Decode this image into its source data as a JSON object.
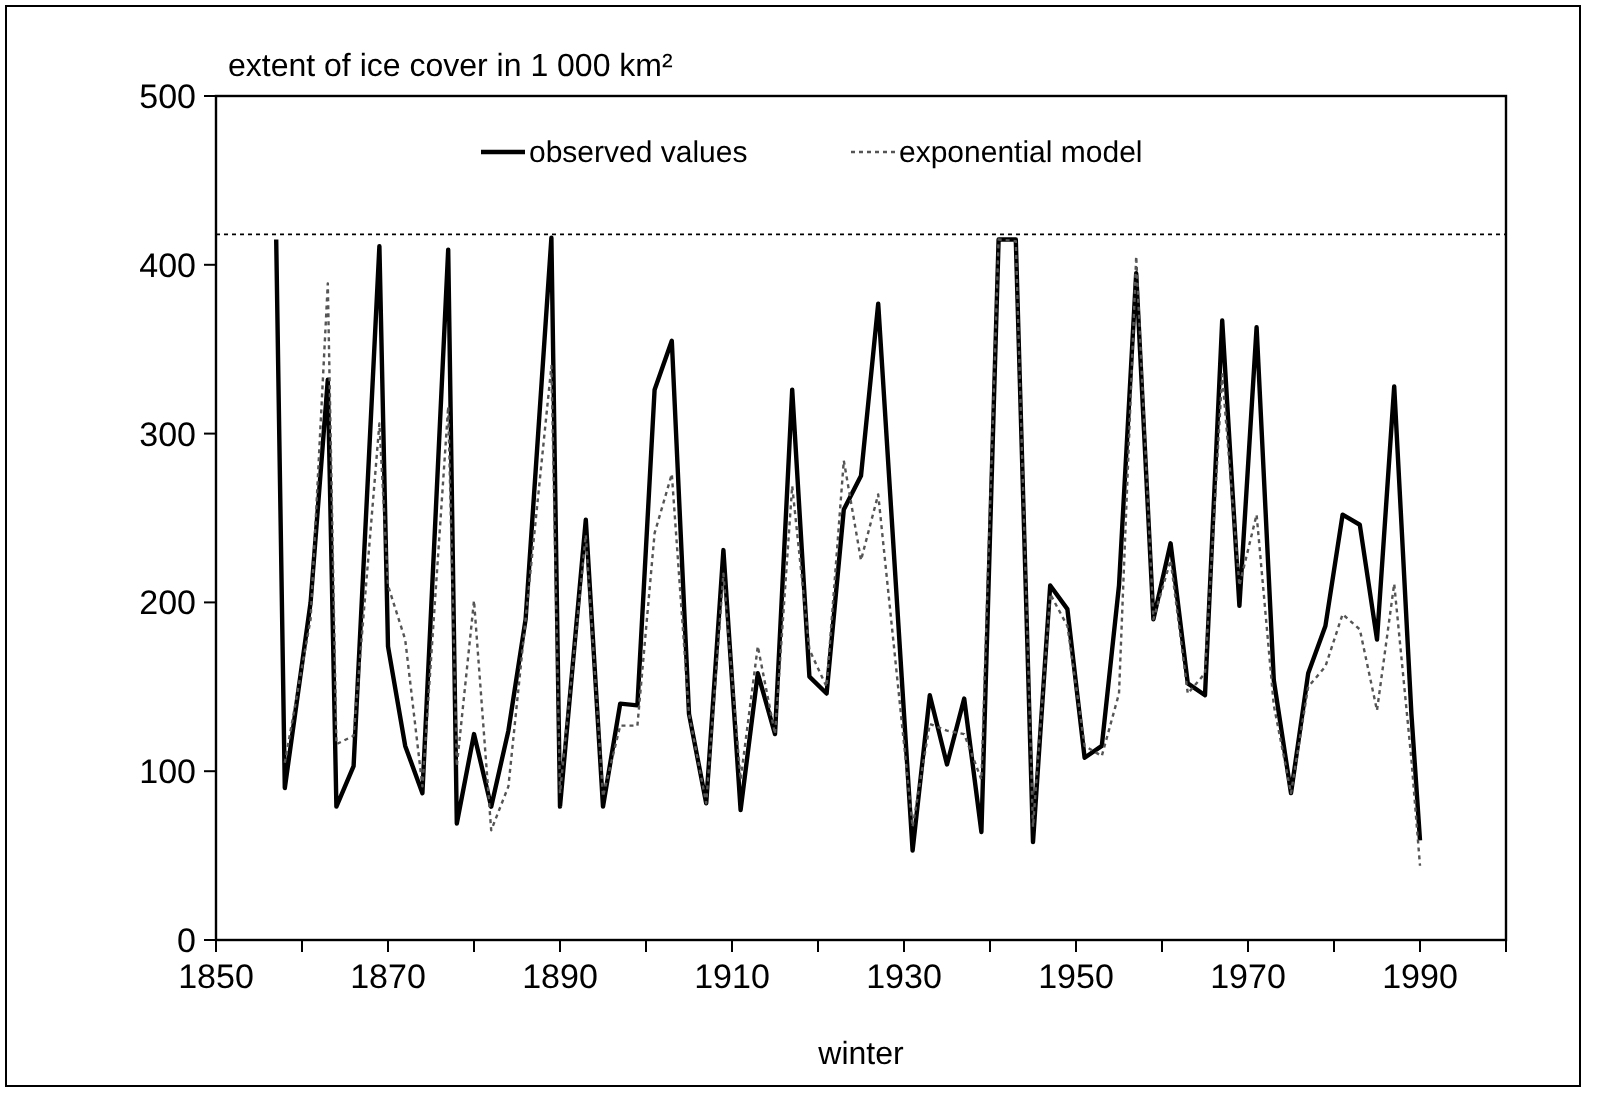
{
  "chart_data": {
    "type": "line",
    "ylabel": "extent of ice cover in 1 000 km²",
    "xlabel": "winter",
    "x": [
      1857,
      1858,
      1861,
      1863,
      1864,
      1866,
      1869,
      1870,
      1872,
      1874,
      1877,
      1878,
      1880,
      1882,
      1884,
      1886,
      1889,
      1890,
      1893,
      1895,
      1897,
      1899,
      1901,
      1903,
      1905,
      1907,
      1909,
      1911,
      1913,
      1915,
      1917,
      1919,
      1921,
      1923,
      1925,
      1927,
      1931,
      1933,
      1935,
      1937,
      1939,
      1941,
      1943,
      1945,
      1947,
      1949,
      1951,
      1953,
      1955,
      1957,
      1959,
      1961,
      1963,
      1965,
      1967,
      1969,
      1971,
      1973,
      1975,
      1977,
      1979,
      1981,
      1983,
      1985,
      1987,
      1989,
      1990
    ],
    "series": [
      {
        "name": "observed values",
        "color": "#000000",
        "line_style": "solid",
        "values": [
          415,
          90,
          200,
          332,
          79,
          103,
          411,
          174,
          115,
          87,
          409,
          69,
          122,
          79,
          124,
          190,
          416,
          79,
          249,
          79,
          140,
          139,
          326,
          355,
          134,
          81,
          231,
          77,
          158,
          122,
          326,
          156,
          146,
          255,
          275,
          377,
          53,
          145,
          104,
          143,
          64,
          415,
          415,
          58,
          210,
          196,
          108,
          115,
          210,
          395,
          190,
          235,
          152,
          145,
          367,
          198,
          363,
          154,
          87,
          158,
          186,
          252,
          246,
          178,
          328,
          134,
          59
        ]
      },
      {
        "name": "exponential model",
        "color": "#555555",
        "line_style": "dotted",
        "values": [
          null,
          105,
          190,
          389,
          116,
          121,
          306,
          210,
          178,
          91,
          316,
          103,
          201,
          65,
          91,
          190,
          340,
          87,
          240,
          85,
          127,
          127,
          241,
          276,
          134,
          81,
          217,
          95,
          174,
          122,
          269,
          172,
          150,
          284,
          225,
          264,
          67,
          128,
          124,
          122,
          95,
          415,
          414,
          67,
          205,
          186,
          115,
          109,
          146,
          405,
          190,
          225,
          146,
          158,
          335,
          210,
          252,
          139,
          87,
          150,
          162,
          193,
          184,
          136,
          211,
          107,
          44
        ]
      }
    ],
    "xlim": [
      1850,
      2000
    ],
    "ylim": [
      0,
      500
    ],
    "xticks": [
      1850,
      {
        "value": 1860,
        "label": null
      },
      1870,
      {
        "value": 1880,
        "label": null
      },
      1890,
      {
        "value": 1900,
        "label": null
      },
      1910,
      {
        "value": 1920,
        "label": null
      },
      1930,
      {
        "value": 1940,
        "label": null
      },
      1950,
      {
        "value": 1960,
        "label": null
      },
      1970,
      {
        "value": 1980,
        "label": null
      },
      1990,
      {
        "value": 2000,
        "label": null
      }
    ],
    "yticks": [
      0,
      100,
      200,
      300,
      400,
      500
    ],
    "ref_lines": [
      {
        "axis": "y",
        "value": 418,
        "color": "#000000",
        "line_style": "dotted"
      }
    ],
    "legend": "top",
    "grid": false
  }
}
